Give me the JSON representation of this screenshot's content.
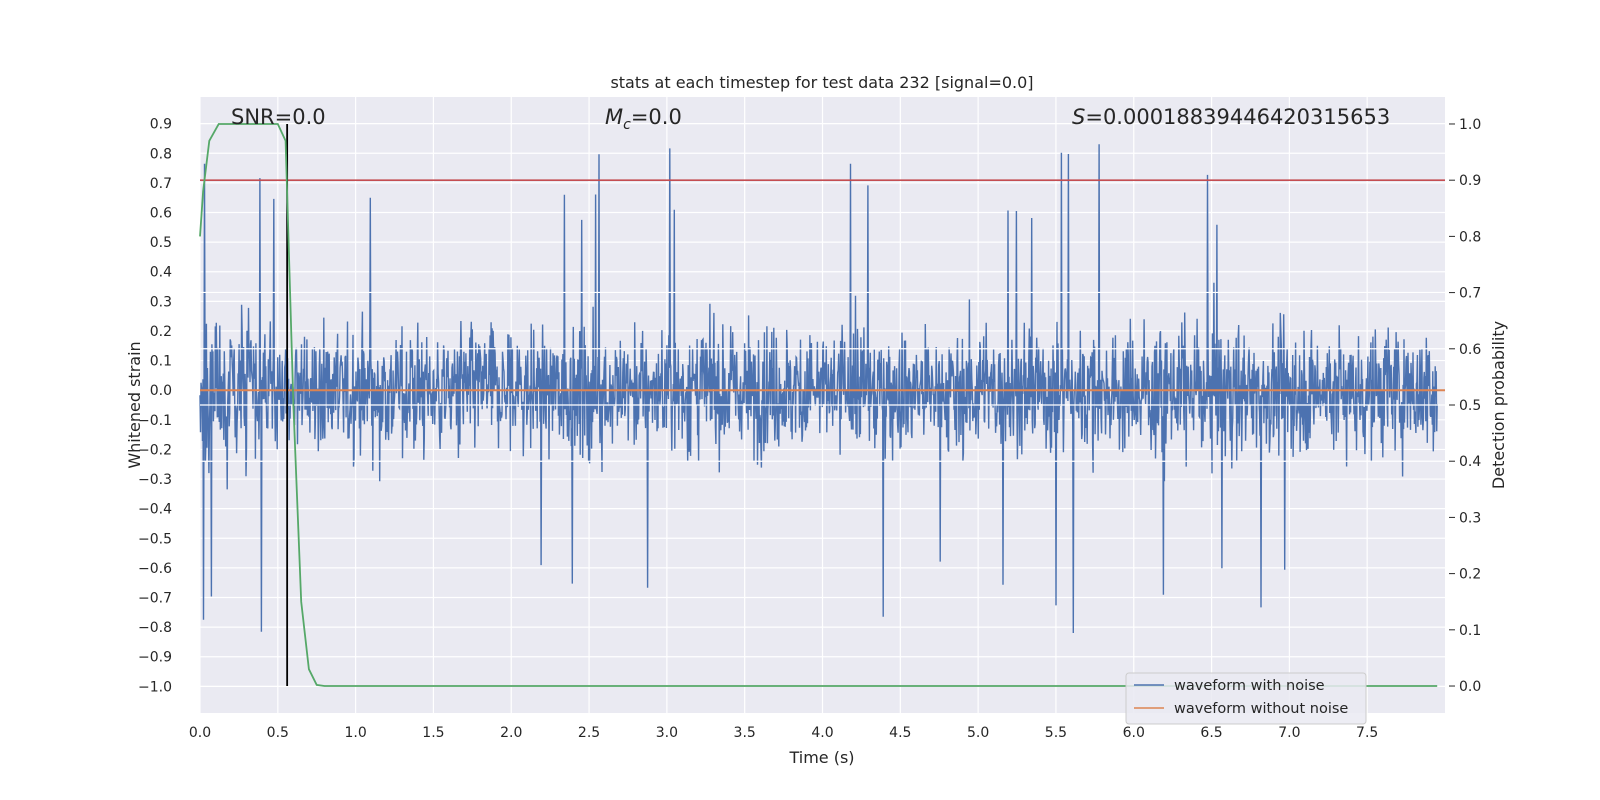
{
  "chart_data": {
    "type": "line",
    "title": "stats at each timestep for test data 232 [signal=0.0]",
    "xlabel": "Time (s)",
    "ylabel": "Whitened strain",
    "y2label": "Detection probability",
    "xlim": [
      0.0,
      8.0
    ],
    "ylim": [
      -1.09,
      0.99
    ],
    "y2lim": [
      -0.048,
      1.048
    ],
    "xticks": [
      "0.0",
      "0.5",
      "1.0",
      "1.5",
      "2.0",
      "2.5",
      "3.0",
      "3.5",
      "4.0",
      "4.5",
      "5.0",
      "5.5",
      "6.0",
      "6.5",
      "7.0",
      "7.5"
    ],
    "yticks": [
      "0.9",
      "0.8",
      "0.7",
      "0.6",
      "0.5",
      "0.4",
      "0.3",
      "0.2",
      "0.1",
      "0.0",
      "−0.1",
      "−0.2",
      "−0.3",
      "−0.4",
      "−0.5",
      "−0.6",
      "−0.7",
      "−0.8",
      "−0.9",
      "−1.0"
    ],
    "y2ticks": [
      "1.0",
      "0.9",
      "0.8",
      "0.7",
      "0.6",
      "0.5",
      "0.4",
      "0.3",
      "0.2",
      "0.1",
      "0.0"
    ],
    "annotations": {
      "snr_prefix": "SNR",
      "snr_value": "=0.0",
      "mc_prefix": "M",
      "mc_sub": "c",
      "mc_value": "=0.0",
      "s_prefix": "S",
      "s_value": "=0.00018839446420315653"
    },
    "legend": {
      "position": "lower-right",
      "entries": [
        "waveform with noise",
        "waveform without noise"
      ]
    },
    "series": [
      {
        "name": "waveform with noise",
        "color": "#4c72b0",
        "axis": "left",
        "note": "whitened noisy strain, amplitude approx ±0.4 typical, peaks to ±0.9"
      },
      {
        "name": "waveform without noise",
        "color": "#dd8452",
        "axis": "left",
        "values_constant": 0.0
      },
      {
        "name": "detection probability",
        "color": "#55a868",
        "axis": "right",
        "x": [
          0.0,
          0.02,
          0.06,
          0.12,
          0.2,
          0.3,
          0.4,
          0.45,
          0.5,
          0.55,
          0.6,
          0.65,
          0.7,
          0.75,
          0.8,
          1.0,
          7.95
        ],
        "values": [
          0.8,
          0.88,
          0.97,
          1.0,
          1.0,
          1.0,
          1.0,
          1.0,
          1.0,
          0.97,
          0.5,
          0.15,
          0.03,
          0.002,
          0.0,
          0.0,
          0.0
        ]
      },
      {
        "name": "threshold",
        "color": "#c44e52",
        "axis": "right",
        "values_constant": 0.9
      }
    ],
    "vline_x": 0.56,
    "vline_color": "#000000"
  }
}
